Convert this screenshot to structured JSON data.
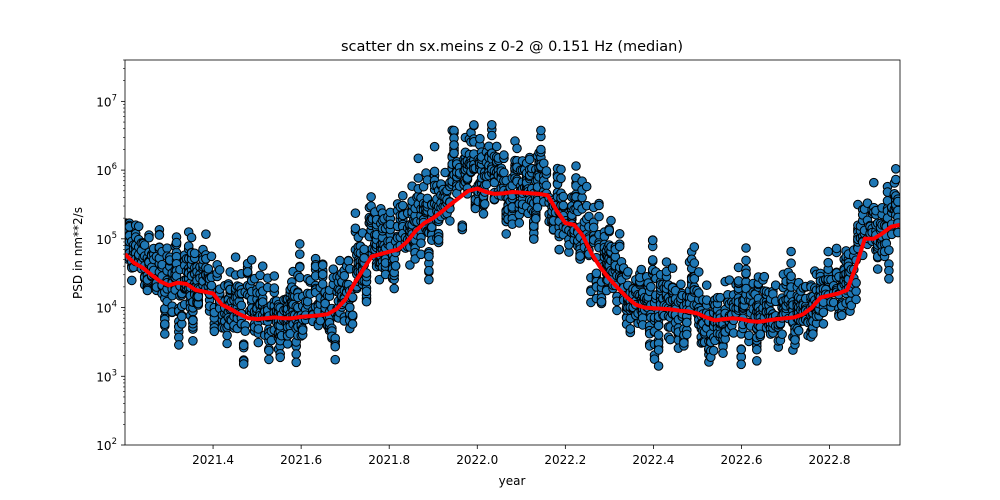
{
  "chart_data": {
    "type": "scatter",
    "title": "scatter dn sx.meins z 0-2 @ 0.151 Hz (median)",
    "xlabel": "year",
    "ylabel": "PSD in nm**2/s",
    "xlim": [
      2021.2,
      2022.96
    ],
    "ylim": [
      100,
      40000000
    ],
    "yscale": "log",
    "grid": false,
    "x_ticks": [
      2021.4,
      2021.6,
      2021.8,
      2022.0,
      2022.2,
      2022.4,
      2022.6,
      2022.8
    ],
    "x_tick_labels": [
      "2021.4",
      "2021.6",
      "2021.8",
      "2022.0",
      "2022.2",
      "2022.4",
      "2022.6",
      "2022.8"
    ],
    "y_ticks": [
      100,
      1000,
      10000,
      100000,
      1000000,
      10000000
    ],
    "y_tick_labels": [
      {
        "base": "10",
        "exp": "2"
      },
      {
        "base": "10",
        "exp": "3"
      },
      {
        "base": "10",
        "exp": "4"
      },
      {
        "base": "10",
        "exp": "5"
      },
      {
        "base": "10",
        "exp": "6"
      },
      {
        "base": "10",
        "exp": "7"
      }
    ],
    "colors": {
      "scatter_fill": "#1f77b4",
      "scatter_edge": "#000000",
      "median_line": "#ff0000"
    },
    "series": [
      {
        "kind": "median",
        "x": [
          2021.2,
          2021.22,
          2021.24,
          2021.26,
          2021.28,
          2021.3,
          2021.32,
          2021.34,
          2021.36,
          2021.38,
          2021.4,
          2021.42,
          2021.44,
          2021.46,
          2021.48,
          2021.5,
          2021.52,
          2021.54,
          2021.56,
          2021.58,
          2021.6,
          2021.62,
          2021.64,
          2021.66,
          2021.68,
          2021.7,
          2021.72,
          2021.74,
          2021.76,
          2021.78,
          2021.8,
          2021.82,
          2021.84,
          2021.86,
          2021.88,
          2021.9,
          2021.92,
          2021.94,
          2021.96,
          2021.98,
          2022.0,
          2022.02,
          2022.04,
          2022.06,
          2022.08,
          2022.1,
          2022.12,
          2022.14,
          2022.16,
          2022.18,
          2022.2,
          2022.22,
          2022.24,
          2022.26,
          2022.28,
          2022.3,
          2022.32,
          2022.34,
          2022.36,
          2022.38,
          2022.4,
          2022.42,
          2022.44,
          2022.46,
          2022.48,
          2022.5,
          2022.52,
          2022.54,
          2022.56,
          2022.58,
          2022.6,
          2022.62,
          2022.64,
          2022.66,
          2022.68,
          2022.7,
          2022.72,
          2022.74,
          2022.76,
          2022.78,
          2022.8,
          2022.82,
          2022.84,
          2022.86,
          2022.88,
          2022.9,
          2022.92,
          2022.94,
          2022.96
        ],
        "y": [
          60000,
          45000,
          38000,
          30000,
          24000,
          21000,
          23000,
          22000,
          18000,
          17000,
          16000,
          11000,
          9500,
          8000,
          7000,
          6800,
          7000,
          7200,
          7000,
          7000,
          7300,
          7500,
          7700,
          8000,
          9500,
          13000,
          22000,
          35000,
          55000,
          60000,
          65000,
          70000,
          90000,
          130000,
          170000,
          200000,
          250000,
          320000,
          400000,
          500000,
          540000,
          480000,
          450000,
          460000,
          480000,
          470000,
          460000,
          450000,
          430000,
          260000,
          170000,
          160000,
          110000,
          60000,
          38000,
          26000,
          19000,
          14000,
          11000,
          10000,
          9800,
          9600,
          9400,
          9000,
          8800,
          8200,
          7200,
          6500,
          6800,
          7000,
          6800,
          6300,
          6200,
          6500,
          6800,
          7000,
          7200,
          8000,
          10000,
          14000,
          15000,
          16000,
          18000,
          40000,
          100000,
          100000,
          120000,
          150000,
          160000
        ]
      }
    ]
  }
}
